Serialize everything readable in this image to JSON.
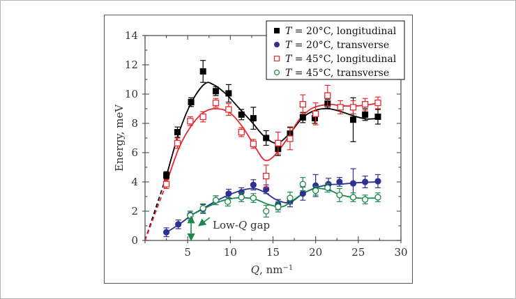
{
  "chart_data": {
    "type": "scatter",
    "title": "",
    "xlabel": "Q, nm⁻¹",
    "xlabel_var": "Q",
    "xlabel_unit": ", nm",
    "xlabel_exp": "−1",
    "ylabel": "Energy, meV",
    "xlim": [
      0,
      30
    ],
    "ylim": [
      0,
      14
    ],
    "xticks": [
      5,
      10,
      15,
      20,
      25,
      30
    ],
    "xtick_labels": [
      "5",
      "10",
      "15",
      "20",
      "25",
      "30"
    ],
    "yticks": [
      0,
      2,
      4,
      6,
      8,
      10,
      12,
      14
    ],
    "ytick_labels": [
      "0",
      "2",
      "4",
      "6",
      "8",
      "10",
      "12",
      "14"
    ],
    "grid": false,
    "legend_position": "top-right",
    "series": [
      {
        "name": "T = 20°C, longitudinal",
        "legend_var": "T",
        "legend_rest": " = 20°C, longitudinal",
        "marker": "filled-square",
        "color": "#000000",
        "x": [
          2.5,
          3.8,
          5.4,
          6.8,
          8.3,
          9.8,
          11.3,
          12.7,
          14.2,
          15.6,
          17.0,
          18.5,
          19.9,
          21.4,
          24.4,
          25.8,
          27.3
        ],
        "y": [
          4.45,
          7.4,
          9.45,
          11.55,
          10.2,
          10.05,
          8.6,
          8.35,
          7.0,
          6.25,
          7.3,
          8.4,
          8.35,
          9.35,
          8.25,
          8.6,
          8.45
        ],
        "err": [
          0.25,
          0.35,
          0.3,
          0.75,
          0.3,
          0.6,
          0.35,
          0.75,
          0.5,
          0.45,
          0.45,
          0.35,
          0.35,
          0.3,
          1.5,
          0.4,
          0.5
        ],
        "fit": [
          [
            2.5,
            4.4
          ],
          [
            4,
            7.4
          ],
          [
            5.5,
            9.5
          ],
          [
            7,
            10.7
          ],
          [
            8,
            10.65
          ],
          [
            9.5,
            10.0
          ],
          [
            11,
            9.05
          ],
          [
            12.5,
            8.1
          ],
          [
            14,
            7.1
          ],
          [
            15.5,
            6.65
          ],
          [
            17,
            7.35
          ],
          [
            18.5,
            8.4
          ],
          [
            20,
            8.9
          ],
          [
            21.5,
            9.0
          ],
          [
            23,
            8.8
          ],
          [
            24.5,
            8.5
          ],
          [
            26,
            8.3
          ],
          [
            27.3,
            8.35
          ]
        ],
        "dashed_extrapolation": [
          [
            0,
            0
          ],
          [
            2.5,
            4.4
          ]
        ]
      },
      {
        "name": "T = 20°C, transverse",
        "legend_var": "T",
        "legend_rest": " = 20°C, transverse",
        "marker": "filled-circle",
        "color": "#2e3192",
        "x": [
          2.5,
          3.9,
          5.3,
          6.8,
          8.3,
          9.8,
          11.3,
          12.7,
          14.2,
          15.6,
          17.0,
          18.5,
          20.0,
          21.5,
          22.8,
          24.4,
          25.8,
          27.3
        ],
        "y": [
          0.56,
          1.1,
          1.75,
          2.15,
          2.75,
          3.2,
          3.3,
          3.8,
          3.5,
          2.45,
          2.65,
          3.2,
          3.75,
          3.85,
          4.0,
          3.9,
          4.0,
          4.05
        ],
        "err": [
          0.3,
          0.3,
          0.25,
          0.3,
          0.3,
          0.3,
          0.3,
          0.35,
          0.3,
          0.35,
          0.35,
          0.45,
          0.75,
          0.4,
          0.3,
          1.0,
          0.4,
          0.45
        ],
        "fit": [
          [
            2.5,
            0.55
          ],
          [
            4,
            1.1
          ],
          [
            5.5,
            1.75
          ],
          [
            7,
            2.25
          ],
          [
            8.5,
            2.75
          ],
          [
            10,
            3.15
          ],
          [
            11.5,
            3.45
          ],
          [
            12.8,
            3.55
          ],
          [
            14,
            3.3
          ],
          [
            15.5,
            2.75
          ],
          [
            17,
            2.6
          ],
          [
            18.5,
            3.2
          ],
          [
            20,
            3.6
          ],
          [
            21.5,
            3.8
          ],
          [
            23,
            3.85
          ],
          [
            25,
            3.95
          ],
          [
            27.3,
            4.0
          ]
        ]
      },
      {
        "name": "T = 45°C, longitudinal",
        "legend_var": "T",
        "legend_rest": " = 45°C, longitudinal",
        "marker": "open-square",
        "color": "#e8282d",
        "x": [
          2.5,
          3.8,
          5.3,
          6.8,
          8.3,
          9.8,
          11.3,
          12.7,
          14.2,
          15.6,
          17.0,
          18.5,
          20.0,
          21.4,
          22.9,
          24.4,
          25.8,
          27.3
        ],
        "y": [
          3.85,
          6.65,
          8.15,
          8.45,
          9.4,
          8.95,
          7.4,
          6.6,
          4.4,
          6.65,
          6.95,
          9.3,
          8.65,
          9.9,
          9.1,
          9.1,
          9.3,
          9.4
        ],
        "err": [
          0.3,
          0.35,
          0.3,
          0.35,
          0.3,
          0.4,
          0.3,
          0.3,
          0.75,
          0.75,
          0.75,
          0.65,
          0.75,
          0.7,
          0.45,
          0.45,
          0.4,
          0.4
        ],
        "fit": [
          [
            2.5,
            3.9
          ],
          [
            4,
            6.35
          ],
          [
            5.5,
            7.9
          ],
          [
            7,
            8.8
          ],
          [
            8.5,
            9.0
          ],
          [
            10,
            8.7
          ],
          [
            11.5,
            7.7
          ],
          [
            13,
            6.3
          ],
          [
            14,
            5.5
          ],
          [
            15,
            5.7
          ],
          [
            16.5,
            6.8
          ],
          [
            18,
            8.2
          ],
          [
            19.5,
            9.0
          ],
          [
            21.5,
            9.3
          ],
          [
            23,
            9.2
          ],
          [
            25,
            9.2
          ],
          [
            26.5,
            9.3
          ],
          [
            27.3,
            9.4
          ]
        ],
        "dashed_extrapolation": [
          [
            0,
            0
          ],
          [
            2.5,
            3.9
          ]
        ]
      },
      {
        "name": "T = 45°C, transverse",
        "legend_var": "T",
        "legend_rest": " = 45°C, transverse",
        "marker": "open-circle",
        "color": "#1a8a4a",
        "x": [
          5.3,
          6.8,
          8.3,
          9.7,
          11.3,
          12.7,
          14.2,
          15.6,
          17.0,
          18.5,
          20.0,
          21.4,
          22.8,
          24.4,
          25.8,
          27.3
        ],
        "y": [
          1.7,
          2.2,
          2.75,
          2.65,
          2.95,
          2.9,
          2.0,
          2.3,
          2.9,
          3.85,
          3.4,
          3.6,
          3.1,
          2.95,
          2.8,
          2.95
        ],
        "err": [
          0.3,
          0.3,
          0.3,
          0.3,
          0.3,
          0.3,
          0.4,
          0.35,
          0.4,
          0.45,
          0.3,
          0.3,
          0.45,
          0.3,
          0.3,
          0.3
        ],
        "fit": [
          [
            5.3,
            1.7
          ],
          [
            7,
            2.2
          ],
          [
            8.5,
            2.6
          ],
          [
            10,
            2.85
          ],
          [
            11.5,
            2.92
          ],
          [
            13,
            2.8
          ],
          [
            14.5,
            2.45
          ],
          [
            16,
            2.3
          ],
          [
            17,
            2.6
          ],
          [
            18.5,
            3.2
          ],
          [
            20,
            3.55
          ],
          [
            21.5,
            3.45
          ],
          [
            23,
            3.1
          ],
          [
            25,
            2.9
          ],
          [
            27.3,
            2.9
          ]
        ]
      }
    ],
    "annotations": [
      {
        "text_prefix": "Low-",
        "text_var": "Q",
        "text_suffix": " gap",
        "arrow_double_vertical": {
          "x": 5.4,
          "y_from": 0,
          "y_to": 1.65
        },
        "color": "#1a8a4a"
      }
    ]
  }
}
